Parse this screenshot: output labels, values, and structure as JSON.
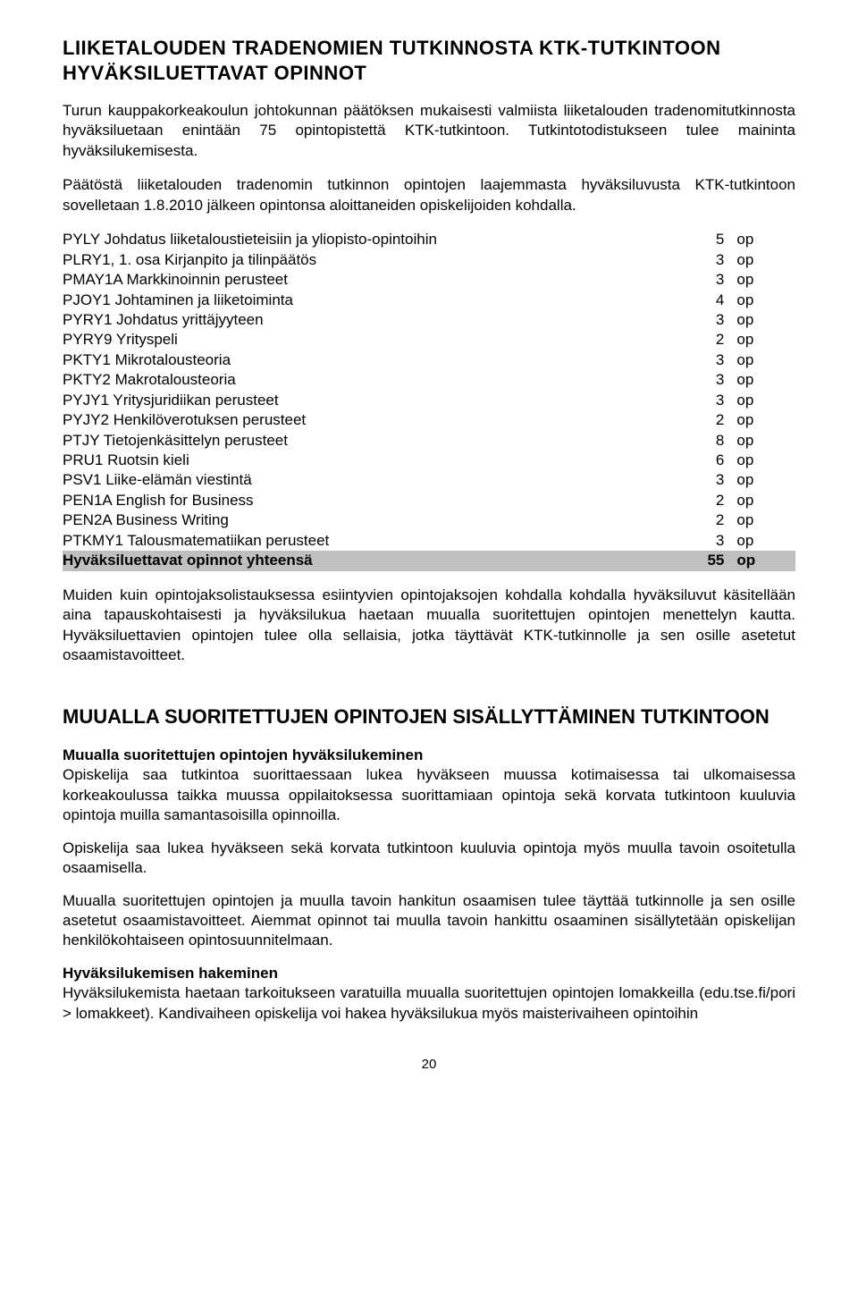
{
  "title_line1": "LIIKETALOUDEN TRADENOMIEN TUTKINNOSTA KTK-TUTKINTOON HYVÄKSILUETTAVAT OPINNOT",
  "intro_para1": "Turun kauppakorkeakoulun johtokunnan päätöksen mukaisesti valmiista liiketalouden tradenomitutkinnosta hyväksiluetaan enintään 75 opintopistettä KTK-tutkintoon. Tutkintotodistukseen tulee maininta hyväksilukemisesta.",
  "intro_para2": "Päätöstä liiketalouden tradenomin tutkinnon opintojen laajemmasta hyväksiluvusta KTK-tutkintoon sovelletaan 1.8.2010 jälkeen opintonsa aloittaneiden opiskelijoiden kohdalla.",
  "courses": [
    {
      "name": "PYLY Johdatus liiketaloustieteisiin ja yliopisto-opintoihin",
      "credits": "5",
      "unit": "op"
    },
    {
      "name": "PLRY1, 1. osa Kirjanpito ja tilinpäätös",
      "credits": "3",
      "unit": "op"
    },
    {
      "name": "PMAY1A Markkinoinnin perusteet",
      "credits": "3",
      "unit": "op"
    },
    {
      "name": "PJOY1 Johtaminen ja liiketoiminta",
      "credits": "4",
      "unit": "op"
    },
    {
      "name": "PYRY1 Johdatus yrittäjyyteen",
      "credits": "3",
      "unit": "op"
    },
    {
      "name": "PYRY9 Yrityspeli",
      "credits": "2",
      "unit": "op"
    },
    {
      "name": "PKTY1 Mikrotalousteoria",
      "credits": "3",
      "unit": "op"
    },
    {
      "name": "PKTY2 Makrotalousteoria",
      "credits": "3",
      "unit": "op"
    },
    {
      "name": "PYJY1 Yritysjuridiikan perusteet",
      "credits": "3",
      "unit": "op"
    },
    {
      "name": "PYJY2 Henkilöverotuksen perusteet",
      "credits": "2",
      "unit": "op"
    },
    {
      "name": "PTJY Tietojenkäsittelyn perusteet",
      "credits": "8",
      "unit": "op"
    },
    {
      "name": "PRU1 Ruotsin kieli",
      "credits": "6",
      "unit": "op"
    },
    {
      "name": "PSV1 Liike-elämän viestintä",
      "credits": "3",
      "unit": "op"
    },
    {
      "name": "PEN1A English for Business",
      "credits": "2",
      "unit": "op"
    },
    {
      "name": "PEN2A Business Writing",
      "credits": "2",
      "unit": "op"
    },
    {
      "name": "PTKMY1 Talousmatematiikan perusteet",
      "credits": "3",
      "unit": "op"
    }
  ],
  "total_row": {
    "name": "Hyväksiluettavat opinnot yhteensä",
    "credits": "55",
    "unit": "op"
  },
  "after_table_para": "Muiden kuin opintojaksolistauksessa esiintyvien opintojaksojen kohdalla kohdalla hyväksiluvut käsitellään aina tapauskohtaisesti ja hyväksilukua haetaan muualla suoritettujen opintojen menettelyn kautta. Hyväksiluettavien opintojen tulee olla sellaisia, jotka täyttävät KTK-tutkinnolle ja sen osille asetetut osaamistavoitteet.",
  "section2_title": "MUUALLA SUORITETTUJEN OPINTOJEN SISÄLLYTTÄMINEN TUTKINTOON",
  "sub1_heading": "Muualla suoritettujen opintojen hyväksilukeminen",
  "sub1_para": "Opiskelija saa tutkintoa suorittaessaan lukea hyväkseen muussa kotimaisessa tai ulkomaisessa korkeakoulussa taikka muussa oppilaitoksessa suorittamiaan opintoja sekä korvata tutkintoon kuuluvia opintoja muilla samantasoisilla opinnoilla.",
  "sub1_para2": "Opiskelija saa lukea hyväkseen sekä korvata tutkintoon kuuluvia opintoja myös muulla tavoin osoitetulla osaamisella.",
  "sub1_para3": "Muualla suoritettujen opintojen ja muulla tavoin hankitun osaamisen tulee täyttää tutkinnolle ja sen osille asetetut osaamistavoitteet. Aiemmat opinnot tai muulla tavoin hankittu osaaminen sisällytetään opiskelijan henkilökohtaiseen opintosuunnitelmaan.",
  "sub2_heading": "Hyväksilukemisen hakeminen",
  "sub2_para": "Hyväksilukemista haetaan tarkoitukseen varatuilla muualla suoritettujen opintojen lomakkeilla (edu.tse.fi/pori > lomakkeet). Kandivaiheen opiskelija voi hakea hyväksilukua myös maisterivaiheen opintoihin",
  "page_number": "20"
}
